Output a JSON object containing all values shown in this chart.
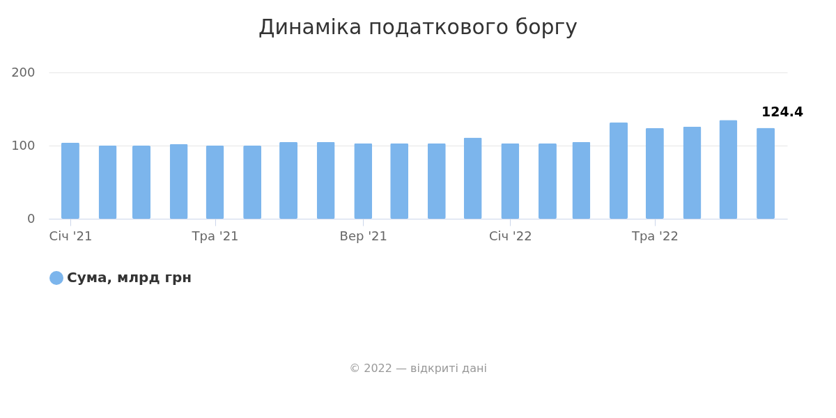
{
  "chart_data": {
    "type": "bar",
    "title": "Динаміка податкового боргу",
    "x": [
      "2021-01",
      "2021-02",
      "2021-03",
      "2021-04",
      "2021-05",
      "2021-06",
      "2021-07",
      "2021-08",
      "2021-09",
      "2021-10",
      "2021-11",
      "2021-12",
      "2022-01",
      "2022-02",
      "2022-03",
      "2022-04",
      "2022-05",
      "2022-06",
      "2022-07",
      "2022-08"
    ],
    "series": [
      {
        "name": "Сума, млрд грн",
        "color": "#7cb5ec",
        "values": [
          104,
          100,
          100,
          102,
          100,
          100,
          105,
          105,
          103,
          103,
          103,
          111,
          103,
          103,
          105,
          132,
          124,
          126,
          135,
          124.4
        ],
        "value_labels": [
          null,
          null,
          null,
          null,
          null,
          null,
          null,
          null,
          null,
          null,
          null,
          null,
          null,
          null,
          null,
          null,
          null,
          null,
          null,
          "124.4"
        ]
      }
    ],
    "xlim": [
      "2020-12-17",
      "2022-08-16"
    ],
    "xticks": [
      {
        "value": "2021-01",
        "label": "Січ '21"
      },
      {
        "value": "2021-05",
        "label": "Тра '21"
      },
      {
        "value": "2021-09",
        "label": "Вер '21"
      },
      {
        "value": "2022-01",
        "label": "Січ '22"
      },
      {
        "value": "2022-05",
        "label": "Тра '22"
      }
    ],
    "ylim": [
      0,
      200
    ],
    "yticks": [
      0,
      100,
      200
    ],
    "grid": "y",
    "legend": "bottom",
    "annotations": [
      "© 2022 — відкриті дані"
    ]
  }
}
